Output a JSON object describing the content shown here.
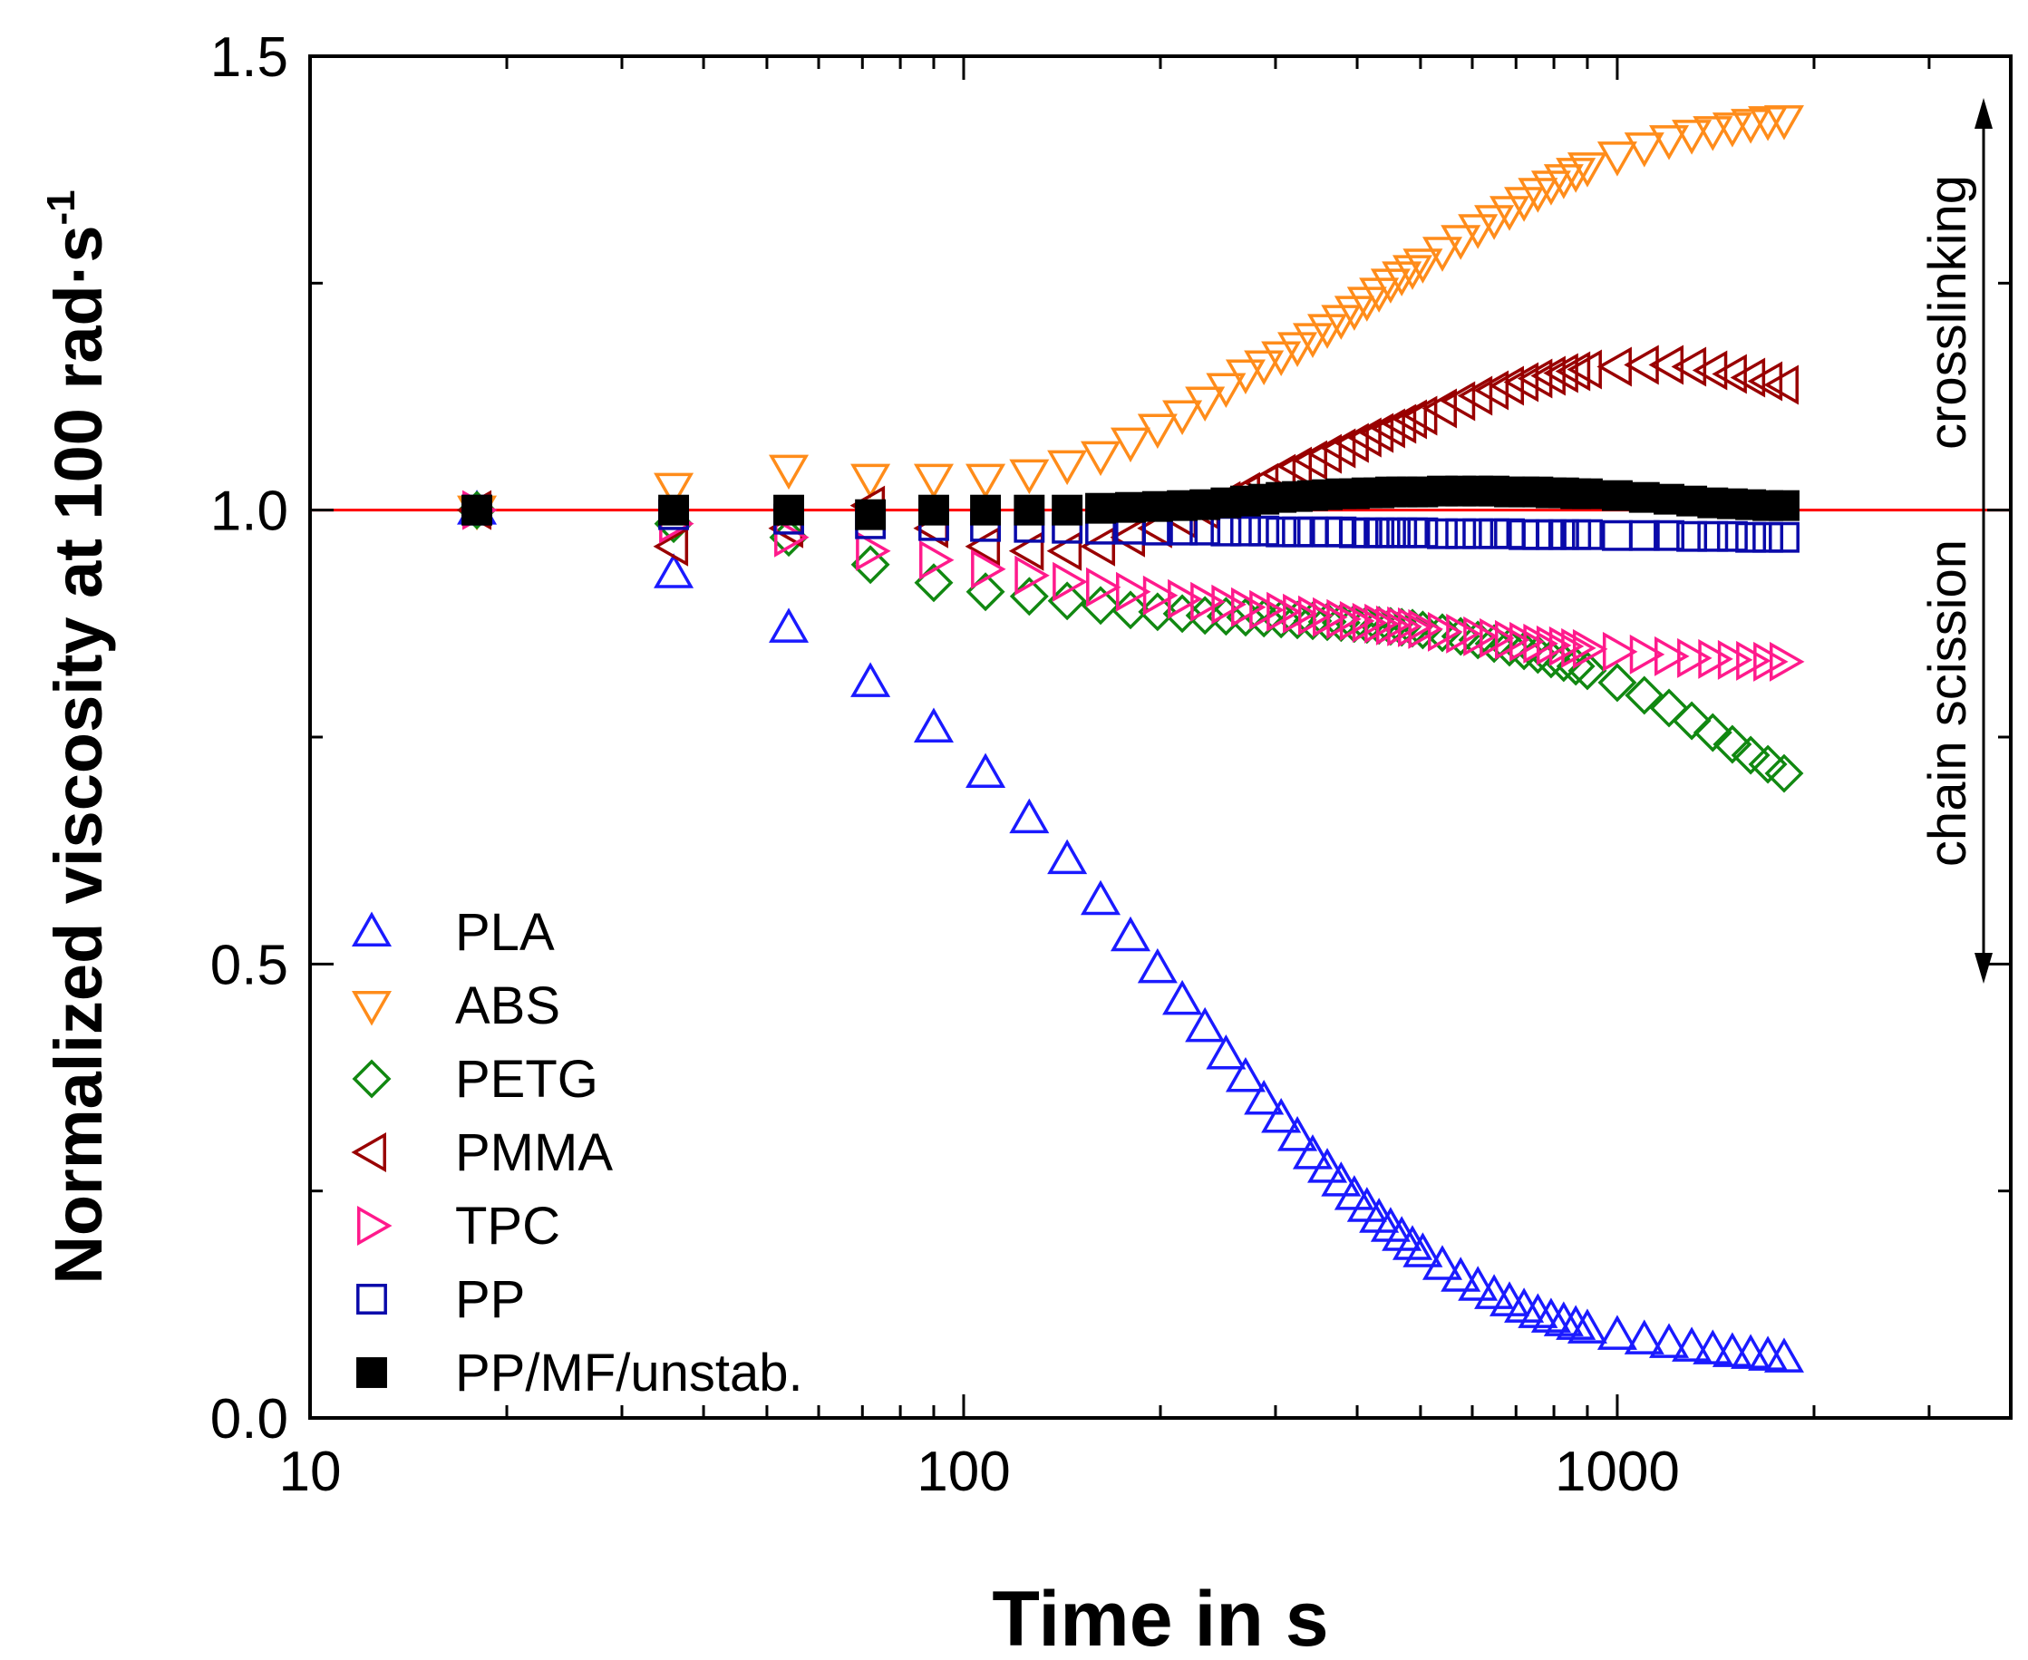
{
  "chart_data": {
    "type": "scatter",
    "title": "",
    "xlabel": "Time in s",
    "ylabel": "Normalized viscosity at 100 rad·s",
    "ylabel_superscript": "-1",
    "xscale": "log",
    "xlim": [
      10,
      4000
    ],
    "ylim": [
      0.0,
      1.5
    ],
    "x_ticks": [
      10,
      100,
      1000
    ],
    "x_tick_labels": [
      "10",
      "100",
      "1000"
    ],
    "y_ticks": [
      0.0,
      0.5,
      1.0,
      1.5
    ],
    "y_tick_labels": [
      "0.0",
      "0.5",
      "1.0",
      "1.5"
    ],
    "reference_line": {
      "y": 1.0,
      "color": "#ff0000"
    },
    "legend_position": "bottom-left",
    "annotations": {
      "upper": "crosslinking",
      "lower": "chain scission"
    },
    "x": [
      18,
      36,
      54,
      72,
      90,
      108,
      126,
      144,
      162,
      180,
      198,
      216,
      234,
      252,
      270,
      288,
      306,
      324,
      342,
      360,
      378,
      396,
      414,
      432,
      450,
      468,
      486,
      504,
      540,
      576,
      612,
      648,
      684,
      720,
      756,
      792,
      828,
      864,
      900,
      1000,
      1100,
      1200,
      1300,
      1400,
      1500,
      1600,
      1700,
      1800
    ],
    "series": [
      {
        "name": "PLA",
        "marker": "triangle-up",
        "color": "#1a1aff",
        "filled": false,
        "values": [
          1.0,
          0.93,
          0.87,
          0.81,
          0.76,
          0.71,
          0.66,
          0.615,
          0.57,
          0.53,
          0.495,
          0.46,
          0.43,
          0.4,
          0.375,
          0.35,
          0.33,
          0.31,
          0.29,
          0.275,
          0.26,
          0.245,
          0.232,
          0.22,
          0.21,
          0.2,
          0.19,
          0.182,
          0.168,
          0.155,
          0.145,
          0.136,
          0.128,
          0.121,
          0.115,
          0.11,
          0.106,
          0.102,
          0.098,
          0.091,
          0.086,
          0.082,
          0.078,
          0.075,
          0.072,
          0.07,
          0.068,
          0.066
        ]
      },
      {
        "name": "ABS",
        "marker": "triangle-down",
        "color": "#ff8c1a",
        "filled": false,
        "values": [
          1.0,
          1.025,
          1.045,
          1.035,
          1.035,
          1.035,
          1.04,
          1.05,
          1.06,
          1.075,
          1.09,
          1.105,
          1.12,
          1.135,
          1.15,
          1.16,
          1.17,
          1.18,
          1.19,
          1.2,
          1.21,
          1.22,
          1.23,
          1.24,
          1.25,
          1.258,
          1.265,
          1.272,
          1.285,
          1.298,
          1.31,
          1.32,
          1.33,
          1.34,
          1.35,
          1.358,
          1.365,
          1.372,
          1.378,
          1.39,
          1.4,
          1.408,
          1.414,
          1.418,
          1.422,
          1.426,
          1.429,
          1.43
        ]
      },
      {
        "name": "PETG",
        "marker": "diamond",
        "color": "#118811",
        "filled": false,
        "values": [
          1.0,
          0.985,
          0.97,
          0.94,
          0.92,
          0.91,
          0.905,
          0.9,
          0.895,
          0.89,
          0.888,
          0.886,
          0.884,
          0.883,
          0.882,
          0.881,
          0.88,
          0.879,
          0.878,
          0.877,
          0.876,
          0.875,
          0.874,
          0.873,
          0.872,
          0.871,
          0.87,
          0.868,
          0.865,
          0.861,
          0.857,
          0.853,
          0.849,
          0.845,
          0.841,
          0.836,
          0.832,
          0.828,
          0.823,
          0.81,
          0.796,
          0.782,
          0.768,
          0.755,
          0.742,
          0.73,
          0.72,
          0.71
        ]
      },
      {
        "name": "PMMA",
        "marker": "triangle-left",
        "color": "#990000",
        "filled": false,
        "values": [
          1.0,
          0.96,
          0.98,
          1.005,
          0.98,
          0.96,
          0.955,
          0.955,
          0.96,
          0.97,
          0.98,
          0.99,
          1.0,
          1.01,
          1.02,
          1.03,
          1.04,
          1.048,
          1.055,
          1.062,
          1.068,
          1.074,
          1.08,
          1.085,
          1.09,
          1.095,
          1.1,
          1.104,
          1.112,
          1.12,
          1.126,
          1.132,
          1.137,
          1.141,
          1.145,
          1.148,
          1.151,
          1.153,
          1.155,
          1.158,
          1.16,
          1.16,
          1.158,
          1.154,
          1.15,
          1.146,
          1.142,
          1.138
        ]
      },
      {
        "name": "TPC",
        "marker": "triangle-right",
        "color": "#ff1a8c",
        "filled": false,
        "values": [
          1.0,
          0.985,
          0.97,
          0.955,
          0.945,
          0.935,
          0.928,
          0.921,
          0.915,
          0.91,
          0.906,
          0.902,
          0.899,
          0.896,
          0.893,
          0.89,
          0.888,
          0.886,
          0.884,
          0.882,
          0.88,
          0.878,
          0.876,
          0.875,
          0.873,
          0.872,
          0.871,
          0.869,
          0.866,
          0.864,
          0.861,
          0.859,
          0.857,
          0.855,
          0.853,
          0.851,
          0.85,
          0.848,
          0.847,
          0.844,
          0.841,
          0.839,
          0.837,
          0.836,
          0.835,
          0.834,
          0.833,
          0.833
        ]
      },
      {
        "name": "PP",
        "marker": "square",
        "color": "#0a0aaa",
        "filled": false,
        "values": [
          1.0,
          0.995,
          0.99,
          0.985,
          0.983,
          0.982,
          0.981,
          0.98,
          0.979,
          0.979,
          0.978,
          0.978,
          0.978,
          0.977,
          0.977,
          0.977,
          0.976,
          0.976,
          0.976,
          0.976,
          0.976,
          0.975,
          0.975,
          0.975,
          0.975,
          0.975,
          0.975,
          0.975,
          0.974,
          0.974,
          0.974,
          0.974,
          0.974,
          0.973,
          0.973,
          0.973,
          0.973,
          0.973,
          0.973,
          0.972,
          0.972,
          0.972,
          0.971,
          0.971,
          0.971,
          0.97,
          0.97,
          0.97
        ]
      },
      {
        "name": "PP/MF/unstab.",
        "marker": "square",
        "color": "#000000",
        "filled": true,
        "values": [
          1.0,
          1.0,
          1.0,
          0.995,
          1.0,
          1.0,
          1.0,
          1.0,
          1.002,
          1.003,
          1.004,
          1.005,
          1.006,
          1.008,
          1.01,
          1.012,
          1.014,
          1.015,
          1.016,
          1.017,
          1.018,
          1.018,
          1.019,
          1.019,
          1.02,
          1.02,
          1.02,
          1.02,
          1.021,
          1.021,
          1.021,
          1.021,
          1.02,
          1.02,
          1.02,
          1.019,
          1.019,
          1.018,
          1.018,
          1.016,
          1.014,
          1.012,
          1.01,
          1.008,
          1.007,
          1.006,
          1.005,
          1.005
        ]
      }
    ]
  }
}
